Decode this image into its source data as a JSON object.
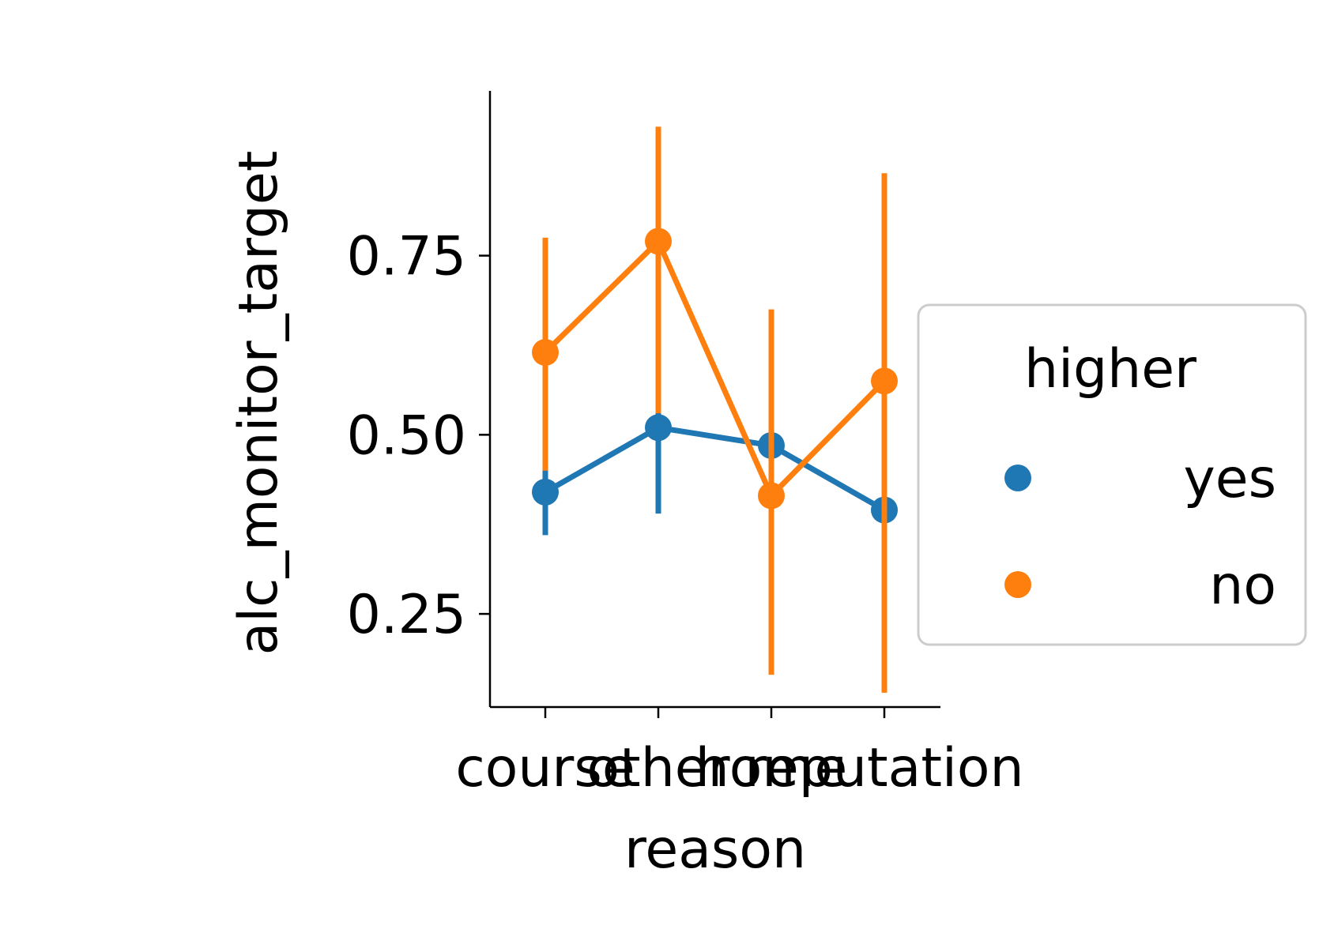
{
  "chart_data": {
    "type": "point",
    "categories": [
      "course",
      "other",
      "home",
      "reputation"
    ],
    "xlabel": "reason",
    "ylabel": "alc_monitor_target",
    "ylim": [
      0.12,
      0.98
    ],
    "yticks": [
      0.25,
      0.5,
      0.75
    ],
    "ytick_labels": [
      "0.25",
      "0.50",
      "0.75"
    ],
    "grid": false,
    "legend": {
      "title": "higher",
      "placement": "center-right-outside"
    },
    "series": [
      {
        "name": "yes",
        "color": "#1f77b4",
        "values": [
          0.42,
          0.51,
          0.485,
          0.395
        ],
        "ci_low": [
          0.36,
          0.39,
          0.43,
          0.33
        ],
        "ci_high": [
          0.46,
          0.64,
          0.54,
          0.49
        ]
      },
      {
        "name": "no",
        "color": "#ff7f0e",
        "values": [
          0.615,
          0.77,
          0.415,
          0.575
        ],
        "ci_low": [
          0.45,
          0.53,
          0.165,
          0.14
        ],
        "ci_high": [
          0.775,
          0.93,
          0.675,
          0.865
        ]
      }
    ]
  }
}
